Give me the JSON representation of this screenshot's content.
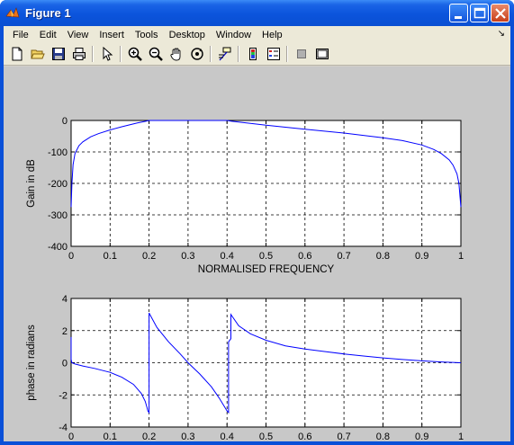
{
  "window": {
    "title": "Figure 1",
    "colors": {
      "titlebar": "#0a50d8",
      "client": "#d4d0c8",
      "plot_bg": "#c8c8c8",
      "line": "#0000ff"
    }
  },
  "menubar": {
    "items": [
      "File",
      "Edit",
      "View",
      "Insert",
      "Tools",
      "Desktop",
      "Window",
      "Help"
    ]
  },
  "toolbar": {
    "icons": [
      "new-file-icon",
      "open-folder-icon",
      "save-icon",
      "print-icon",
      "edit-arrow-icon",
      "zoom-in-icon",
      "zoom-out-icon",
      "pan-hand-icon",
      "rotate-3d-icon",
      "data-cursor-icon",
      "colorbar-icon",
      "legend-icon",
      "hide-tools-icon",
      "show-tools-icon"
    ]
  },
  "chart_data": [
    {
      "type": "line",
      "title": "",
      "xlabel": "NORMALISED FREQUENCY",
      "ylabel": "Gain in dB",
      "xlim": [
        0,
        1
      ],
      "ylim": [
        -400,
        0
      ],
      "xticks": [
        "0",
        "0.1",
        "0.2",
        "0.3",
        "0.4",
        "0.5",
        "0.6",
        "0.7",
        "0.8",
        "0.9",
        "1"
      ],
      "yticks": [
        "0",
        "-100",
        "-200",
        "-300",
        "-400"
      ],
      "grid": true,
      "series": [
        {
          "x": [
            0,
            0.002,
            0.005,
            0.01,
            0.02,
            0.03,
            0.05,
            0.07,
            0.1,
            0.13,
            0.15,
            0.17,
            0.19,
            0.2,
            0.3,
            0.4,
            0.41,
            0.45,
            0.5,
            0.6,
            0.7,
            0.8,
            0.85,
            0.9,
            0.93,
            0.95,
            0.97,
            0.98,
            0.99,
            0.995,
            1.0
          ],
          "y": [
            -275,
            -200,
            -140,
            -105,
            -80,
            -68,
            -52,
            -42,
            -30,
            -20,
            -14,
            -8,
            -3,
            0,
            0,
            0,
            -2,
            -8,
            -15,
            -28,
            -40,
            -55,
            -64,
            -78,
            -92,
            -105,
            -125,
            -142,
            -170,
            -200,
            -275
          ]
        }
      ]
    },
    {
      "type": "line",
      "title": "",
      "xlabel": "noramlised frequency",
      "ylabel": "phase in radians",
      "xlim": [
        0,
        1
      ],
      "ylim": [
        -4,
        4
      ],
      "xticks": [
        "0",
        "0.1",
        "0.2",
        "0.3",
        "0.4",
        "0.5",
        "0.6",
        "0.7",
        "0.8",
        "0.9",
        "1"
      ],
      "yticks": [
        "4",
        "2",
        "0",
        "-2",
        "-4"
      ],
      "grid": true,
      "series": [
        {
          "x": [
            0.0,
            0.0,
            0.002,
            0.01,
            0.03,
            0.06,
            0.1,
            0.13,
            0.16,
            0.18,
            0.19,
            0.195,
            0.197,
            0.2,
            0.2,
            0.22,
            0.25,
            0.28,
            0.3,
            0.33,
            0.36,
            0.38,
            0.39,
            0.4,
            0.404,
            0.404,
            0.41,
            0.41,
            0.43,
            0.46,
            0.5,
            0.55,
            0.6,
            0.65,
            0.7,
            0.75,
            0.8,
            0.85,
            0.9,
            0.95,
            1.0
          ],
          "y": [
            1.6,
            0.2,
            0.0,
            -0.08,
            -0.2,
            -0.35,
            -0.6,
            -0.9,
            -1.35,
            -1.9,
            -2.4,
            -2.8,
            -3.0,
            -3.1,
            3.1,
            2.2,
            1.3,
            0.55,
            0.0,
            -0.7,
            -1.5,
            -2.2,
            -2.6,
            -3.0,
            -3.1,
            1.3,
            1.5,
            3.0,
            2.3,
            1.8,
            1.4,
            1.05,
            0.85,
            0.7,
            0.55,
            0.42,
            0.3,
            0.2,
            0.12,
            0.05,
            0.0
          ]
        }
      ]
    }
  ]
}
